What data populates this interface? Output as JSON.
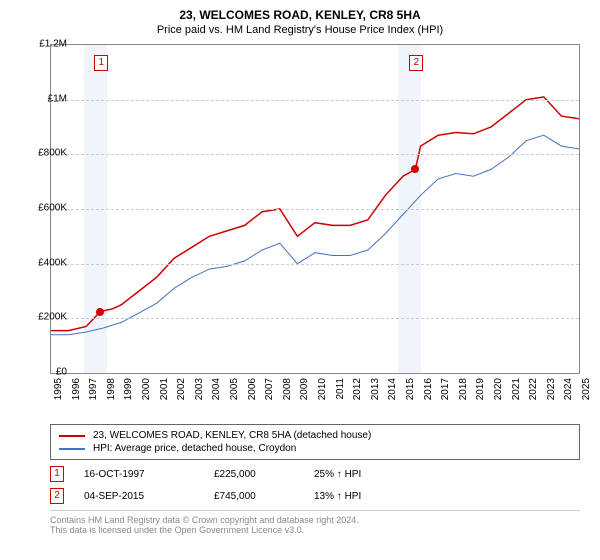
{
  "title": "23, WELCOMES ROAD, KENLEY, CR8 5HA",
  "subtitle": "Price paid vs. HM Land Registry's House Price Index (HPI)",
  "chart": {
    "type": "line",
    "xlim": [
      1995,
      2025
    ],
    "ylim": [
      0,
      1200000
    ],
    "ytick_step": 200000,
    "ytick_labels": [
      "£0",
      "£200K",
      "£400K",
      "£600K",
      "£800K",
      "£1M",
      "£1.2M"
    ],
    "xticks": [
      1995,
      1996,
      1997,
      1998,
      1999,
      2000,
      2001,
      2002,
      2003,
      2004,
      2005,
      2006,
      2007,
      2008,
      2009,
      2010,
      2011,
      2012,
      2013,
      2014,
      2015,
      2016,
      2017,
      2018,
      2019,
      2020,
      2021,
      2022,
      2023,
      2024,
      2025
    ],
    "background_color": "#ffffff",
    "grid_color": "#cccccc",
    "shaded_color": "#eaf0fa",
    "shaded_ranges": [
      [
        1996.9,
        1998.2
      ],
      [
        2014.7,
        2016.0
      ]
    ],
    "series": [
      {
        "name": "price_paid",
        "label": "23, WELCOMES ROAD, KENLEY, CR8 5HA (detached house)",
        "color": "#d00000",
        "width": 1.5,
        "data": [
          [
            1995,
            155000
          ],
          [
            1996,
            155000
          ],
          [
            1997,
            170000
          ],
          [
            1997.8,
            225000
          ],
          [
            1998.5,
            235000
          ],
          [
            1999,
            250000
          ],
          [
            2000,
            300000
          ],
          [
            2001,
            350000
          ],
          [
            2002,
            420000
          ],
          [
            2003,
            460000
          ],
          [
            2004,
            500000
          ],
          [
            2005,
            520000
          ],
          [
            2006,
            540000
          ],
          [
            2007,
            590000
          ],
          [
            2008,
            600000
          ],
          [
            2009,
            500000
          ],
          [
            2010,
            550000
          ],
          [
            2011,
            540000
          ],
          [
            2012,
            540000
          ],
          [
            2013,
            560000
          ],
          [
            2014,
            650000
          ],
          [
            2015,
            720000
          ],
          [
            2015.7,
            745000
          ],
          [
            2016,
            830000
          ],
          [
            2017,
            870000
          ],
          [
            2018,
            880000
          ],
          [
            2019,
            875000
          ],
          [
            2020,
            900000
          ],
          [
            2021,
            950000
          ],
          [
            2022,
            1000000
          ],
          [
            2023,
            1010000
          ],
          [
            2024,
            940000
          ],
          [
            2025,
            930000
          ]
        ]
      },
      {
        "name": "hpi",
        "label": "HPI: Average price, detached house, Croydon",
        "color": "#4472c4",
        "width": 1,
        "data": [
          [
            1995,
            140000
          ],
          [
            1996,
            140000
          ],
          [
            1997,
            150000
          ],
          [
            1998,
            165000
          ],
          [
            1999,
            185000
          ],
          [
            2000,
            220000
          ],
          [
            2001,
            255000
          ],
          [
            2002,
            310000
          ],
          [
            2003,
            350000
          ],
          [
            2004,
            380000
          ],
          [
            2005,
            390000
          ],
          [
            2006,
            410000
          ],
          [
            2007,
            450000
          ],
          [
            2008,
            475000
          ],
          [
            2009,
            400000
          ],
          [
            2010,
            440000
          ],
          [
            2011,
            430000
          ],
          [
            2012,
            430000
          ],
          [
            2013,
            450000
          ],
          [
            2014,
            510000
          ],
          [
            2015,
            580000
          ],
          [
            2016,
            650000
          ],
          [
            2017,
            710000
          ],
          [
            2018,
            730000
          ],
          [
            2019,
            720000
          ],
          [
            2020,
            745000
          ],
          [
            2021,
            790000
          ],
          [
            2022,
            850000
          ],
          [
            2023,
            870000
          ],
          [
            2024,
            830000
          ],
          [
            2025,
            820000
          ]
        ]
      }
    ],
    "sale_markers": [
      {
        "n": 1,
        "x": 1997.8,
        "y": 225000
      },
      {
        "n": 2,
        "x": 2015.7,
        "y": 745000
      }
    ]
  },
  "legend": {
    "items": [
      {
        "color": "#d00000",
        "label": "23, WELCOMES ROAD, KENLEY, CR8 5HA (detached house)"
      },
      {
        "color": "#4472c4",
        "label": "HPI: Average price, detached house, Croydon"
      }
    ]
  },
  "sales": [
    {
      "n": "1",
      "date": "16-OCT-1997",
      "price": "£225,000",
      "hpi": "25% ↑ HPI"
    },
    {
      "n": "2",
      "date": "04-SEP-2015",
      "price": "£745,000",
      "hpi": "13% ↑ HPI"
    }
  ],
  "footer": {
    "line1": "Contains HM Land Registry data © Crown copyright and database right 2024.",
    "line2": "This data is licensed under the Open Government Licence v3.0."
  }
}
